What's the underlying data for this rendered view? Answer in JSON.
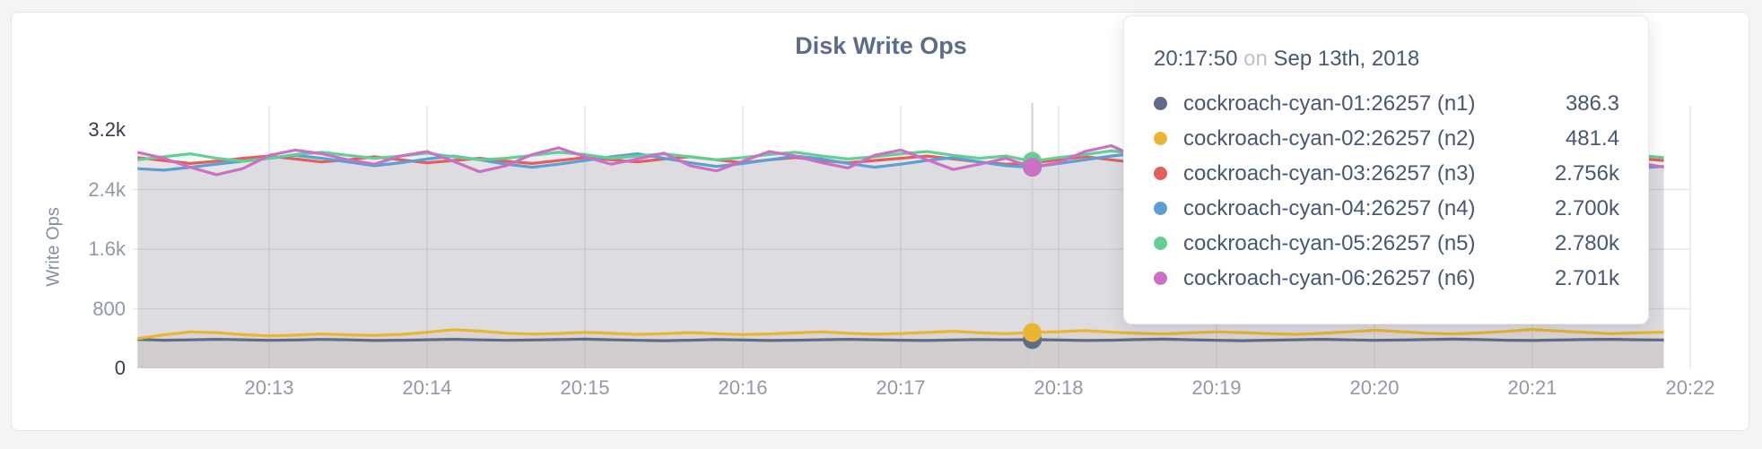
{
  "window": {
    "background": "#f4f4f5"
  },
  "card": {
    "background": "#ffffff",
    "border_color": "#e4e4e6"
  },
  "chart": {
    "title": "Disk Write Ops",
    "y_axis_label": "Write Ops"
  },
  "chart_data": {
    "type": "line",
    "title": "Disk Write Ops",
    "xlabel": "",
    "ylabel": "Write Ops",
    "ylim": [
      0,
      3200
    ],
    "grid": true,
    "legend_position": "tooltip",
    "x_start": "20:12:10",
    "x_interval_seconds": 10,
    "x_tick_labels": [
      "20:13",
      "20:14",
      "20:15",
      "20:16",
      "20:17",
      "20:18",
      "20:19",
      "20:20",
      "20:21",
      "20:22"
    ],
    "y_tick_labels": [
      "3.2k",
      "2.4k",
      "1.6k",
      "800",
      "0"
    ],
    "y_tick_values": [
      3200,
      2400,
      1600,
      800,
      0
    ],
    "hover_index": 34,
    "hover_time": "20:17:50",
    "series": [
      {
        "name": "cockroach-cyan-01:26257 (n1)",
        "color": "#5f6c87",
        "values": [
          388,
          378,
          382,
          390,
          384,
          376,
          380,
          388,
          382,
          374,
          378,
          384,
          390,
          382,
          376,
          380,
          386,
          392,
          384,
          376,
          372,
          378,
          386,
          380,
          374,
          378,
          384,
          390,
          384,
          378,
          374,
          380,
          386,
          382,
          386.3,
          380,
          374,
          378,
          386,
          392,
          384,
          376,
          372,
          378,
          384,
          390,
          382,
          376,
          380,
          386,
          392,
          386,
          378,
          374,
          380,
          386,
          390,
          384,
          380
        ]
      },
      {
        "name": "cockroach-cyan-02:26257 (n2)",
        "color": "#e8b534",
        "values": [
          400,
          450,
          490,
          480,
          452,
          436,
          446,
          462,
          450,
          442,
          456,
          484,
          520,
          500,
          472,
          460,
          468,
          484,
          470,
          456,
          466,
          480,
          466,
          452,
          462,
          476,
          490,
          472,
          458,
          468,
          482,
          498,
          478,
          464,
          481.4,
          492,
          506,
          486,
          470,
          462,
          476,
          490,
          480,
          466,
          456,
          470,
          490,
          512,
          492,
          472,
          462,
          476,
          496,
          522,
          502,
          482,
          466,
          476,
          486
        ]
      },
      {
        "name": "cockroach-cyan-03:26257 (n3)",
        "color": "#e25f5e",
        "values": [
          2830,
          2790,
          2750,
          2780,
          2820,
          2850,
          2810,
          2770,
          2800,
          2840,
          2800,
          2760,
          2790,
          2820,
          2780,
          2750,
          2790,
          2830,
          2800,
          2770,
          2810,
          2840,
          2800,
          2760,
          2800,
          2830,
          2790,
          2760,
          2790,
          2820,
          2850,
          2810,
          2770,
          2740,
          2756,
          2800,
          2840,
          2800,
          2760,
          2790,
          2820,
          2780,
          2750,
          2780,
          2820,
          2790,
          2760,
          2790,
          2830,
          2800,
          2770,
          2800,
          2840,
          2810,
          2780,
          2750,
          2780,
          2820,
          2790
        ]
      },
      {
        "name": "cockroach-cyan-04:26257 (n4)",
        "color": "#5c9fd6",
        "values": [
          2680,
          2660,
          2700,
          2740,
          2780,
          2820,
          2860,
          2820,
          2770,
          2720,
          2760,
          2810,
          2850,
          2800,
          2740,
          2700,
          2740,
          2790,
          2840,
          2880,
          2820,
          2760,
          2710,
          2750,
          2800,
          2850,
          2810,
          2750,
          2700,
          2740,
          2790,
          2830,
          2770,
          2720,
          2700,
          2750,
          2800,
          2850,
          2890,
          2830,
          2770,
          2710,
          2750,
          2800,
          2760,
          2710,
          2670,
          2710,
          2760,
          2810,
          2850,
          2790,
          2730,
          2770,
          2820,
          2780,
          2730,
          2690,
          2710
        ]
      },
      {
        "name": "cockroach-cyan-05:26257 (n5)",
        "color": "#64cf92",
        "values": [
          2800,
          2840,
          2880,
          2820,
          2780,
          2820,
          2870,
          2900,
          2860,
          2820,
          2850,
          2890,
          2840,
          2800,
          2820,
          2860,
          2900,
          2870,
          2820,
          2850,
          2880,
          2840,
          2800,
          2830,
          2870,
          2900,
          2850,
          2810,
          2840,
          2880,
          2910,
          2860,
          2820,
          2850,
          2780,
          2830,
          2870,
          2920,
          2880,
          2830,
          2800,
          2840,
          2890,
          2850,
          2810,
          2830,
          2870,
          2900,
          2860,
          2820,
          2840,
          2880,
          2850,
          2810,
          2830,
          2870,
          2900,
          2860,
          2830
        ]
      },
      {
        "name": "cockroach-cyan-06:26257 (n6)",
        "color": "#cb70c4",
        "values": [
          2900,
          2820,
          2700,
          2600,
          2680,
          2860,
          2930,
          2880,
          2800,
          2740,
          2850,
          2910,
          2780,
          2640,
          2720,
          2870,
          2960,
          2840,
          2740,
          2810,
          2890,
          2720,
          2650,
          2780,
          2910,
          2850,
          2760,
          2690,
          2860,
          2930,
          2800,
          2670,
          2740,
          2820,
          2701,
          2760,
          2910,
          2990,
          2830,
          2750,
          2670,
          2770,
          2850,
          2910,
          2760,
          2630,
          2700,
          2830,
          2900,
          2760,
          2690,
          2780,
          2960,
          2880,
          2790,
          2700,
          2640,
          2760,
          2700
        ]
      }
    ]
  },
  "tooltip": {
    "time": "20:17:50",
    "separator": "on",
    "date": "Sep 13th, 2018",
    "rows": [
      {
        "label": "cockroach-cyan-01:26257 (n1)",
        "value": "386.3",
        "color": "#5f6c87"
      },
      {
        "label": "cockroach-cyan-02:26257 (n2)",
        "value": "481.4",
        "color": "#e8b534"
      },
      {
        "label": "cockroach-cyan-03:26257 (n3)",
        "value": "2.756k",
        "color": "#e25f5e"
      },
      {
        "label": "cockroach-cyan-04:26257 (n4)",
        "value": "2.700k",
        "color": "#5c9fd6"
      },
      {
        "label": "cockroach-cyan-05:26257 (n5)",
        "value": "2.780k",
        "color": "#64cf92"
      },
      {
        "label": "cockroach-cyan-06:26257 (n6)",
        "value": "2.701k",
        "color": "#cb70c4"
      }
    ]
  }
}
